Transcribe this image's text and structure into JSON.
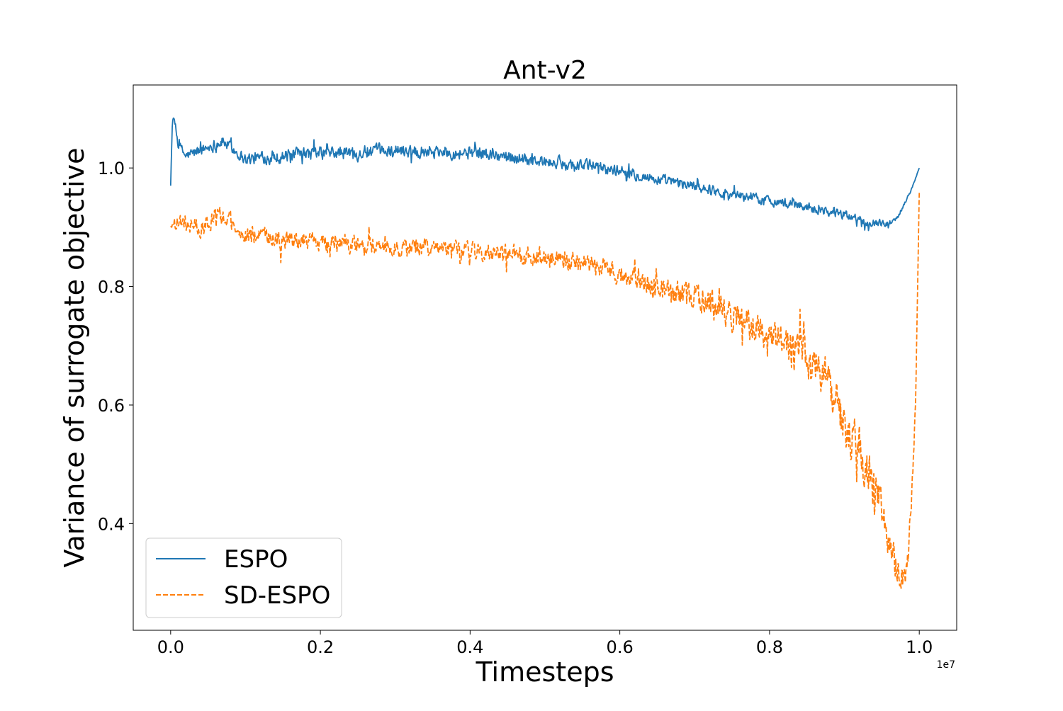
{
  "chart_data": {
    "type": "line",
    "title": "Ant-v2",
    "xlabel": "Timesteps",
    "ylabel": "Variance of surrogate objective",
    "x_offset_label": "1e7",
    "xlim": [
      -0.05,
      1.05
    ],
    "ylim": [
      0.22,
      1.14
    ],
    "x_ticks": [
      0.0,
      0.2,
      0.4,
      0.6,
      0.8,
      1.0
    ],
    "x_tick_labels": [
      "0.0",
      "0.2",
      "0.4",
      "0.6",
      "0.8",
      "1.0"
    ],
    "y_ticks": [
      0.4,
      0.6,
      0.8,
      1.0
    ],
    "y_tick_labels": [
      "0.4",
      "0.6",
      "0.8",
      "1.0"
    ],
    "grid": false,
    "legend_position": "lower-left",
    "series": [
      {
        "name": "ESPO",
        "color": "#1f77b4",
        "style": "solid",
        "x": [
          0.0,
          0.002,
          0.005,
          0.01,
          0.02,
          0.03,
          0.05,
          0.07,
          0.1,
          0.15,
          0.2,
          0.25,
          0.3,
          0.35,
          0.4,
          0.45,
          0.5,
          0.55,
          0.6,
          0.62,
          0.65,
          0.7,
          0.75,
          0.8,
          0.85,
          0.9,
          0.93,
          0.96,
          0.97,
          0.98,
          0.99,
          1.0
        ],
        "y": [
          0.97,
          1.07,
          1.08,
          1.04,
          1.02,
          1.025,
          1.035,
          1.045,
          1.015,
          1.02,
          1.025,
          1.025,
          1.03,
          1.03,
          1.025,
          1.02,
          1.01,
          1.005,
          0.995,
          0.99,
          0.98,
          0.97,
          0.955,
          0.945,
          0.935,
          0.92,
          0.91,
          0.905,
          0.915,
          0.94,
          0.965,
          1.0
        ],
        "noise": [
          0.0,
          0.01,
          0.01,
          0.012,
          0.012,
          0.015,
          0.015,
          0.015,
          0.015,
          0.017,
          0.017,
          0.017,
          0.017,
          0.017,
          0.017,
          0.016,
          0.015,
          0.015,
          0.014,
          0.014,
          0.014,
          0.013,
          0.013,
          0.012,
          0.012,
          0.012,
          0.01,
          0.008,
          0.006,
          0.004,
          0.003,
          0.0
        ]
      },
      {
        "name": "SD-ESPO",
        "color": "#ff7f0e",
        "style": "dashed",
        "x": [
          0.0,
          0.005,
          0.02,
          0.04,
          0.06,
          0.08,
          0.1,
          0.15,
          0.2,
          0.25,
          0.3,
          0.35,
          0.4,
          0.45,
          0.5,
          0.55,
          0.6,
          0.65,
          0.7,
          0.75,
          0.8,
          0.83,
          0.86,
          0.88,
          0.9,
          0.92,
          0.94,
          0.95,
          0.96,
          0.97,
          0.98,
          0.985,
          0.99,
          0.995,
          1.0
        ],
        "y": [
          0.9,
          0.91,
          0.905,
          0.9,
          0.92,
          0.91,
          0.885,
          0.88,
          0.875,
          0.87,
          0.865,
          0.865,
          0.86,
          0.855,
          0.85,
          0.84,
          0.825,
          0.8,
          0.78,
          0.75,
          0.72,
          0.69,
          0.67,
          0.63,
          0.57,
          0.52,
          0.46,
          0.42,
          0.36,
          0.32,
          0.31,
          0.35,
          0.45,
          0.6,
          0.96
        ],
        "noise": [
          0.0,
          0.02,
          0.022,
          0.022,
          0.022,
          0.022,
          0.022,
          0.022,
          0.022,
          0.022,
          0.022,
          0.022,
          0.022,
          0.022,
          0.022,
          0.025,
          0.028,
          0.03,
          0.033,
          0.036,
          0.04,
          0.045,
          0.05,
          0.055,
          0.06,
          0.06,
          0.055,
          0.05,
          0.045,
          0.04,
          0.035,
          0.03,
          0.025,
          0.015,
          0.0
        ]
      }
    ]
  }
}
